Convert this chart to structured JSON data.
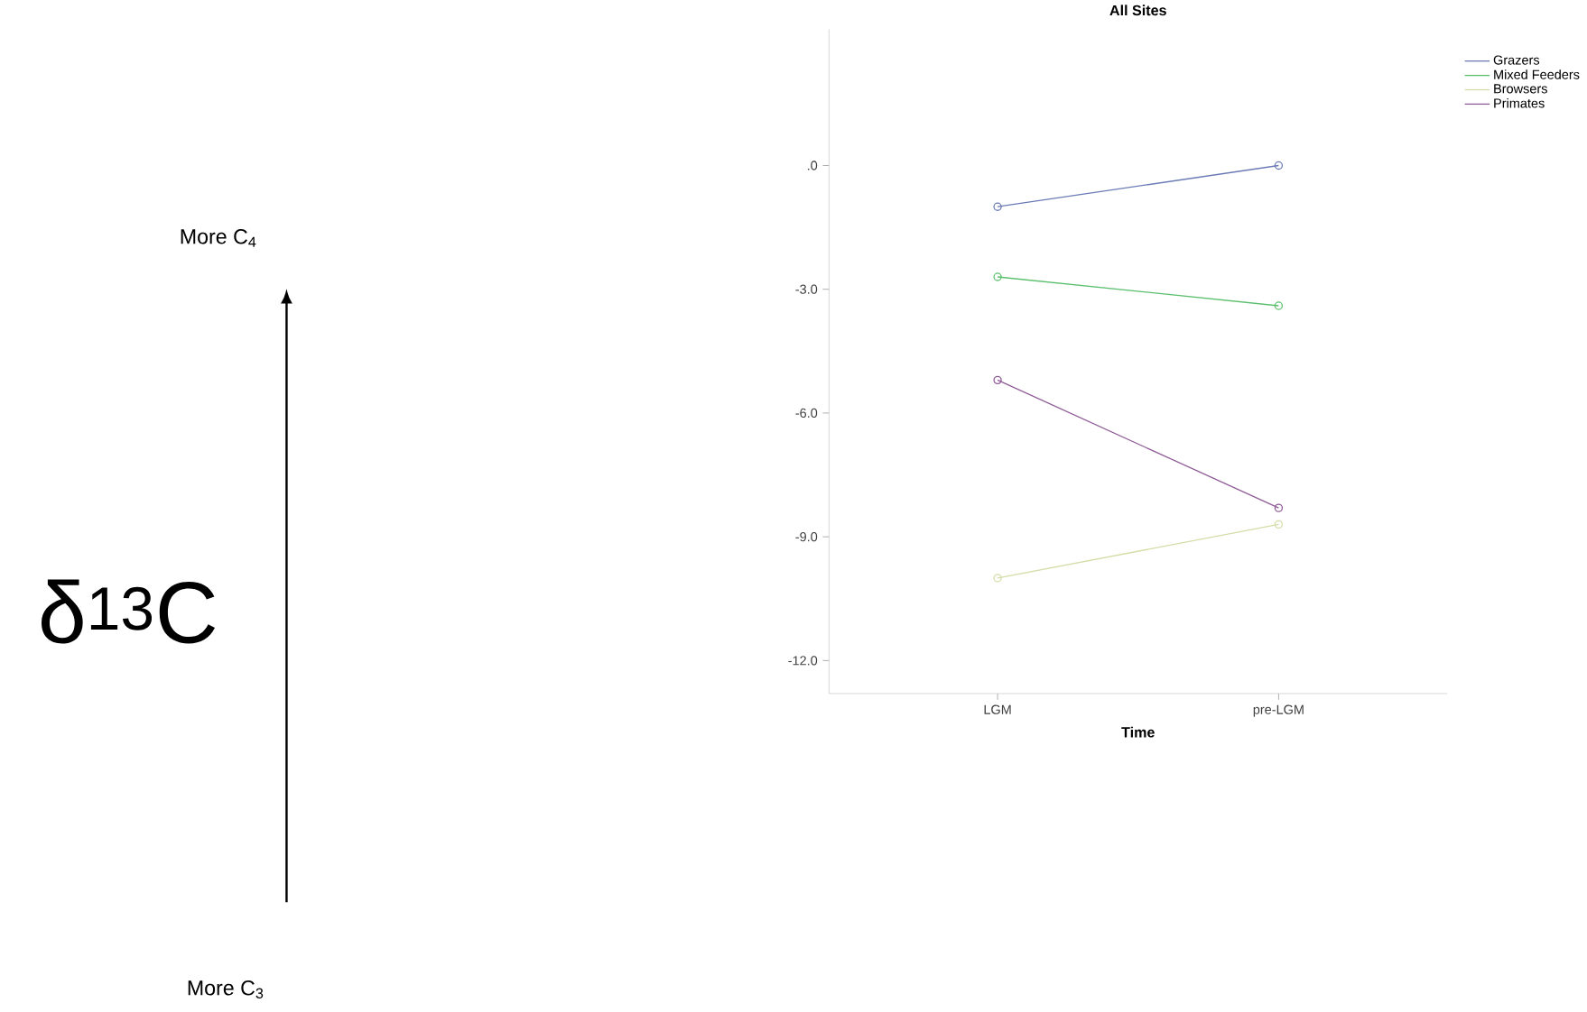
{
  "chart_data": {
    "type": "line",
    "title": "All Sites",
    "xlabel": "Time",
    "categories": [
      "LGM",
      "pre-LGM"
    ],
    "series": [
      {
        "name": "Grazers",
        "color": "#6a7bb5",
        "values": [
          -1.0,
          0.0
        ]
      },
      {
        "name": "Mixed Feeders",
        "color": "#5cbf6e",
        "values": [
          -2.7,
          -3.4
        ]
      },
      {
        "name": "Browsers",
        "color": "#d6dca8",
        "values": [
          -10.0,
          -8.7
        ]
      },
      {
        "name": "Primates",
        "color": "#8e5a96",
        "values": [
          -5.2,
          -8.3
        ]
      }
    ],
    "ylim": [
      -12.8,
      3.3
    ],
    "yticks": [
      {
        "value": 0,
        "label": ".0"
      },
      {
        "value": -3,
        "label": "-3.0"
      },
      {
        "value": -6,
        "label": "-6.0"
      },
      {
        "value": -9,
        "label": "-9.0"
      },
      {
        "value": -12,
        "label": "-12.0"
      }
    ],
    "legend": "right",
    "marker": "circle",
    "grid": false,
    "annotations": [
      "More C$_{4}$",
      "δ$^{13}$C",
      "More C$_{3}$"
    ]
  }
}
